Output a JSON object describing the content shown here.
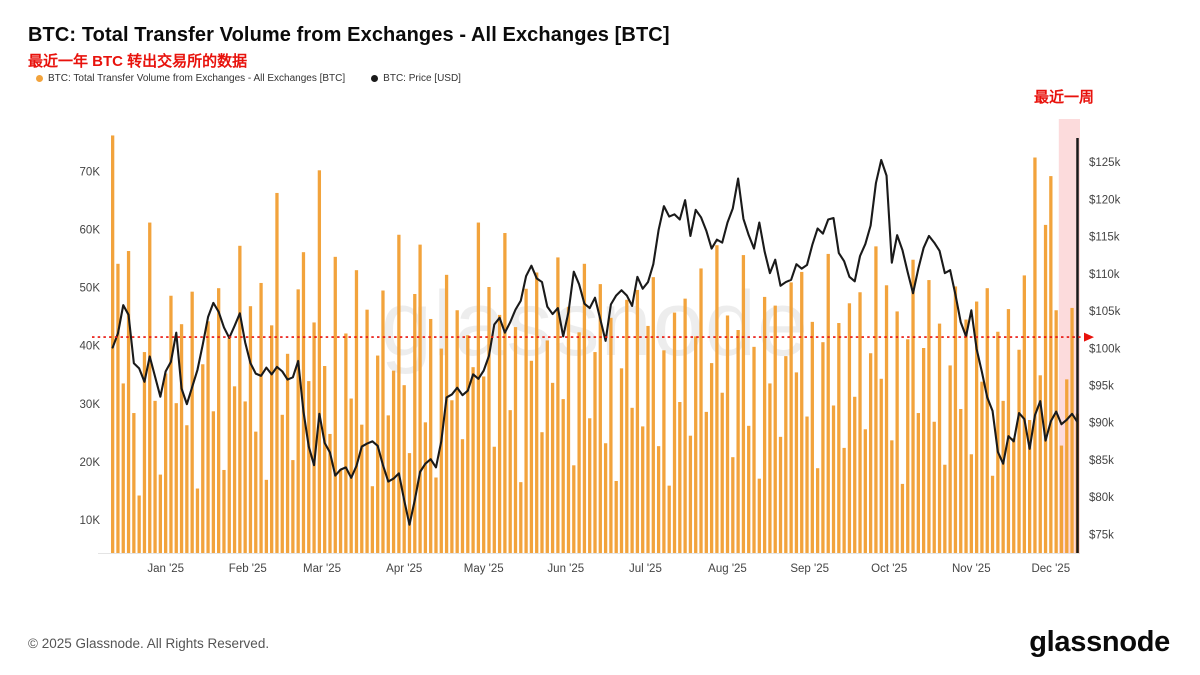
{
  "header": {
    "title": "BTC: Total Transfer Volume from Exchanges - All Exchanges [BTC]",
    "subtitle_cn": "最近一年 BTC 转出交易所的数据",
    "legend": [
      {
        "label": "BTC: Total Transfer Volume from Exchanges - All Exchanges [BTC]",
        "color": "#F2A33C"
      },
      {
        "label": "BTC: Price [USD]",
        "color": "#1A1A1A"
      }
    ],
    "annotation_recent_week": "最近一周"
  },
  "footer": {
    "copyright": "© 2025 Glassnode. All Rights Reserved.",
    "logo_text": "glassnode"
  },
  "chart_data": {
    "type": "bar+line",
    "title": "BTC: Total Transfer Volume from Exchanges - All Exchanges [BTC]",
    "x_tick_labels": [
      "Jan '25",
      "Feb '25",
      "Mar '25",
      "Apr '25",
      "May '25",
      "Jun '25",
      "Jul '25",
      "Aug '25",
      "Sep '25",
      "Oct '25",
      "Nov '25",
      "Dec '25"
    ],
    "x_tick_indices": [
      10.5,
      26,
      40,
      55.5,
      70.5,
      86,
      101,
      116.5,
      132,
      147,
      162.5,
      177.5
    ],
    "left_axis": {
      "tick_labels": [
        "10K",
        "20K",
        "30K",
        "40K",
        "50K",
        "60K",
        "70K"
      ],
      "tick_values": [
        10,
        20,
        30,
        40,
        50,
        60,
        70
      ],
      "range": [
        4.3,
        78
      ],
      "unit": "K BTC"
    },
    "right_axis": {
      "tick_labels": [
        "$75k",
        "$80k",
        "$85k",
        "$90k",
        "$95k",
        "$100k",
        "$105k",
        "$110k",
        "$115k",
        "$120k",
        "$125k"
      ],
      "tick_values": [
        75,
        80,
        85,
        90,
        95,
        100,
        105,
        110,
        115,
        120,
        125
      ],
      "range": [
        72.5,
        130
      ],
      "unit": "k USD"
    },
    "grid": "off",
    "legend_position": "top-left",
    "series": [
      {
        "name": "BTC: Total Transfer Volume from Exchanges - All Exchanges [BTC]",
        "type": "bar",
        "axis": "left",
        "color": "#F2A33C",
        "values": [
          76.2,
          54.1,
          33.5,
          56.3,
          28.4,
          14.2,
          38.9,
          61.2,
          30.5,
          17.8,
          35.2,
          48.6,
          30.1,
          43.7,
          26.3,
          49.3,
          15.4,
          36.8,
          44.2,
          28.7,
          49.9,
          18.6,
          41.3,
          33.0,
          57.2,
          30.4,
          46.8,
          25.2,
          50.8,
          16.9,
          43.5,
          66.3,
          28.1,
          38.6,
          20.3,
          49.7,
          56.1,
          33.9,
          44.0,
          70.2,
          36.5,
          24.8,
          55.3,
          18.7,
          42.1,
          30.9,
          53.0,
          26.4,
          46.2,
          15.8,
          38.3,
          49.5,
          28.0,
          35.7,
          59.1,
          33.2,
          21.5,
          48.9,
          57.4,
          26.8,
          44.6,
          17.3,
          39.5,
          52.2,
          30.6,
          46.1,
          23.9,
          41.8,
          36.3,
          61.2,
          34.7,
          50.1,
          22.6,
          45.3,
          59.4,
          28.9,
          43.2,
          16.5,
          49.8,
          37.4,
          52.6,
          25.1,
          40.9,
          33.6,
          55.2,
          30.8,
          46.7,
          19.4,
          42.3,
          54.1,
          27.5,
          38.9,
          50.6,
          23.2,
          44.8,
          16.7,
          36.1,
          47.9,
          29.3,
          49.6,
          26.1,
          43.4,
          51.8,
          22.7,
          39.2,
          15.9,
          45.7,
          30.3,
          48.1,
          24.5,
          41.6,
          53.3,
          28.6,
          37.0,
          57.3,
          31.9,
          45.2,
          20.8,
          42.7,
          55.6,
          26.2,
          39.8,
          17.1,
          48.4,
          33.5,
          46.9,
          24.3,
          38.2,
          50.9,
          35.4,
          52.7,
          27.8,
          44.1,
          18.9,
          40.6,
          55.8,
          29.7,
          43.9,
          22.4,
          47.3,
          31.2,
          49.2,
          25.6,
          38.7,
          57.1,
          34.3,
          50.4,
          23.7,
          45.9,
          16.2,
          41.1,
          54.8,
          28.4,
          39.6,
          51.3,
          26.9,
          43.8,
          19.5,
          36.6,
          50.2,
          29.1,
          44.5,
          21.3,
          47.6,
          33.8,
          49.9,
          17.6,
          42.4,
          30.5,
          46.3,
          24.1,
          39.3,
          52.1,
          27.2,
          72.4,
          34.9,
          60.8,
          69.2,
          46.1,
          22.8,
          34.2,
          46.5,
          28.3
        ]
      },
      {
        "name": "BTC: Price [USD]",
        "type": "line",
        "axis": "right",
        "color": "#1A1A1A",
        "values": [
          100.1,
          102.0,
          105.8,
          104.5,
          98.0,
          97.3,
          95.5,
          98.9,
          96.2,
          93.5,
          96.9,
          98.2,
          102.1,
          94.6,
          92.5,
          94.8,
          97.1,
          100.5,
          104.2,
          106.1,
          104.9,
          102.8,
          101.4,
          103.0,
          104.7,
          100.8,
          98.0,
          96.6,
          96.3,
          97.4,
          96.5,
          97.5,
          96.9,
          95.8,
          96.1,
          98.3,
          91.5,
          86.8,
          84.3,
          91.2,
          87.3,
          86.0,
          82.9,
          83.7,
          84.0,
          82.6,
          84.2,
          86.8,
          87.2,
          87.5,
          86.9,
          84.3,
          82.1,
          82.5,
          83.2,
          79.6,
          76.3,
          79.6,
          83.4,
          84.5,
          85.1,
          84.0,
          87.5,
          93.4,
          93.8,
          94.7,
          93.7,
          94.3,
          96.5,
          95.9,
          97.0,
          99.0,
          103.2,
          104.1,
          102.1,
          103.5,
          105.2,
          106.4,
          109.7,
          111.1,
          109.4,
          108.9,
          105.6,
          104.6,
          105.4,
          101.6,
          104.9,
          110.3,
          108.6,
          106.0,
          105.4,
          106.8,
          103.9,
          101.0,
          105.9,
          107.1,
          107.8,
          107.1,
          105.7,
          109.6,
          108.0,
          108.9,
          111.3,
          115.9,
          119.1,
          117.7,
          118.0,
          117.3,
          119.9,
          115.1,
          118.6,
          117.6,
          115.8,
          113.4,
          114.6,
          114.2,
          116.9,
          118.8,
          122.8,
          117.4,
          115.2,
          113.4,
          116.9,
          113.0,
          110.1,
          111.9,
          108.4,
          108.9,
          109.2,
          111.3,
          110.7,
          111.2,
          113.9,
          116.1,
          115.4,
          117.3,
          117.5,
          112.8,
          111.7,
          109.6,
          109.0,
          112.4,
          114.0,
          116.5,
          122.2,
          125.3,
          123.2,
          111.5,
          115.2,
          113.2,
          110.2,
          107.4,
          110.7,
          113.5,
          115.1,
          114.2,
          113.1,
          110.1,
          110.5,
          107.2,
          103.5,
          101.6,
          105.1,
          99.9,
          96.8,
          93.4,
          91.6,
          86.1,
          84.5,
          88.2,
          87.5,
          91.3,
          90.5,
          86.5,
          91.0,
          92.9,
          87.6,
          90.2,
          91.5,
          89.8,
          90.4,
          91.2,
          90.1
        ]
      }
    ],
    "highlight": {
      "label": "最近一周",
      "start_index": 179,
      "end_index": 183,
      "color": "rgba(237,28,36,0.16)"
    },
    "reference_line": {
      "axis": "right",
      "value": 101.5,
      "style": "dotted",
      "color": "#E8120C",
      "arrow": "right"
    }
  }
}
